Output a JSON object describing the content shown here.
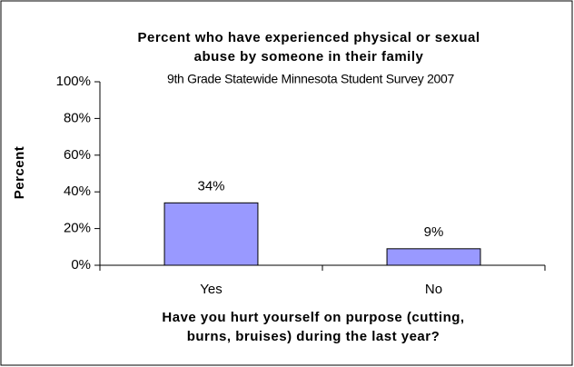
{
  "chart_data": {
    "type": "bar",
    "title": [
      "Percent who have experienced physical or sexual",
      "abuse by someone in their family"
    ],
    "subtitle": "9th Grade Statewide Minnesota Student Survey 2007",
    "y_label": "Percent",
    "x_label": [
      "Have you hurt yourself on purpose (cutting,",
      "burns, bruises) during the last year?"
    ],
    "categories": [
      "Yes",
      "No"
    ],
    "values": [
      34,
      9
    ],
    "value_labels": [
      "34%",
      "9%"
    ],
    "color": "#9999ff",
    "ylim": [
      0,
      100
    ],
    "yticks": [
      {
        "value": 0,
        "label": "0%"
      },
      {
        "value": 20,
        "label": "20%"
      },
      {
        "value": 40,
        "label": "40%"
      },
      {
        "value": 60,
        "label": "60%"
      },
      {
        "value": 80,
        "label": "80%"
      },
      {
        "value": 100,
        "label": "100%"
      }
    ]
  }
}
